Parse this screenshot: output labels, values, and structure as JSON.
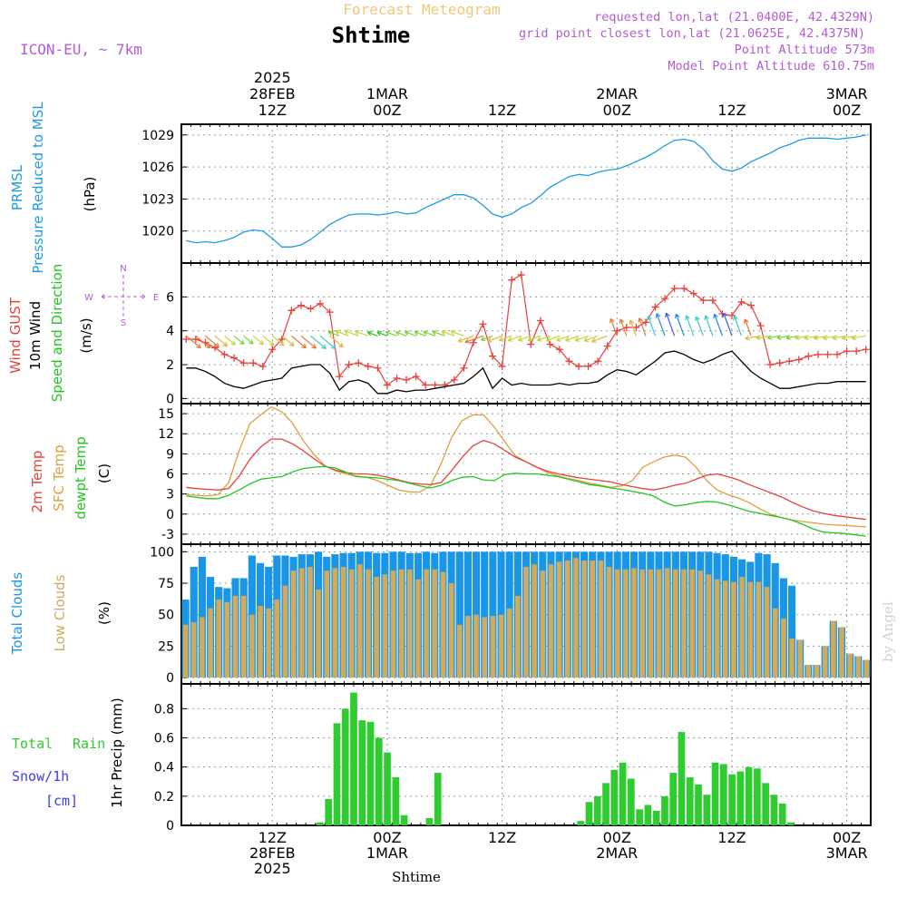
{
  "header": {
    "title": "Shtime",
    "subtitle": "Forecast Meteogram",
    "model": "ICON-EU, ~ 7km",
    "requested": "requested lon,lat (21.0400E, 42.4329N)",
    "gridpoint": "grid point closest lon,lat (21.0625E, 42.4375N)",
    "altitude": "Point Altitude 573m",
    "model_altitude": "Model Point Altitude 610.75m",
    "watermark": "by Angel",
    "footer": "Shtime"
  },
  "time_axis": {
    "top_labels": [
      {
        "i": 9,
        "lines": [
          "2025",
          "28FEB",
          "12Z"
        ]
      },
      {
        "i": 21,
        "lines": [
          "1MAR",
          "00Z"
        ]
      },
      {
        "i": 33,
        "lines": [
          "12Z"
        ]
      },
      {
        "i": 45,
        "lines": [
          "2MAR",
          "00Z"
        ]
      },
      {
        "i": 57,
        "lines": [
          "12Z"
        ]
      },
      {
        "i": 69,
        "lines": [
          "3MAR",
          "00Z"
        ]
      }
    ],
    "bottom_labels": [
      {
        "i": 9,
        "lines": [
          "12Z",
          "28FEB",
          "2025"
        ]
      },
      {
        "i": 21,
        "lines": [
          "00Z",
          "1MAR"
        ]
      },
      {
        "i": 33,
        "lines": [
          "12Z"
        ]
      },
      {
        "i": 45,
        "lines": [
          "00Z",
          "2MAR"
        ]
      },
      {
        "i": 57,
        "lines": [
          "12Z"
        ]
      },
      {
        "i": 69,
        "lines": [
          "00Z",
          "3MAR"
        ]
      }
    ]
  },
  "colors": {
    "pressure": "#1e9be6",
    "gust": "#e8403c",
    "wind": "#000000",
    "temp": "#e8403c",
    "sfc": "#dca03c",
    "dewpt": "#22c722",
    "total_cloud": "#1a96e6",
    "low_cloud": "#d2aa5a",
    "rain": "#2ecc2e",
    "snow": "#3c3cf0",
    "header_purple": "#b45ad2",
    "header_orange": "#f0c87a"
  },
  "chart_data": [
    {
      "type": "line",
      "title": "PRMSL Pressure Reduced to MSL",
      "ylabel": "(hPa)",
      "ylim": [
        1017,
        1030
      ],
      "yticks": [
        1020,
        1023,
        1026,
        1029
      ],
      "series": [
        {
          "name": "PRMSL",
          "values": [
            1019.1,
            1018.9,
            1019.0,
            1018.9,
            1019.1,
            1019.4,
            1019.9,
            1020.1,
            1020.0,
            1019.3,
            1018.5,
            1018.5,
            1018.7,
            1019.2,
            1019.9,
            1020.6,
            1021.1,
            1021.5,
            1021.6,
            1021.6,
            1021.5,
            1021.6,
            1021.8,
            1021.6,
            1021.7,
            1022.2,
            1022.6,
            1023.0,
            1023.4,
            1023.4,
            1023.1,
            1022.4,
            1021.6,
            1021.3,
            1021.6,
            1022.2,
            1022.6,
            1023.3,
            1024.1,
            1024.6,
            1025.1,
            1025.3,
            1025.2,
            1025.5,
            1025.7,
            1025.8,
            1026.1,
            1026.5,
            1026.9,
            1027.4,
            1028.0,
            1028.5,
            1028.6,
            1028.4,
            1027.7,
            1026.6,
            1025.8,
            1025.6,
            1025.9,
            1026.5,
            1026.9,
            1027.3,
            1027.8,
            1028.1,
            1028.5,
            1028.7,
            1028.7,
            1028.7,
            1028.6,
            1028.7,
            1028.8,
            1029.0
          ]
        }
      ]
    },
    {
      "type": "line",
      "title": "Wind GUST / 10m Wind / Speed and Direction",
      "ylabel": "(m/s)",
      "ylim": [
        -0.3,
        8
      ],
      "yticks": [
        0,
        2,
        4,
        6
      ],
      "compass": {
        "n": "N",
        "s": "S",
        "w": "W",
        "e": "E"
      },
      "series": [
        {
          "name": "Wind GUST",
          "values": [
            3.5,
            3.5,
            3.3,
            3.0,
            2.6,
            2.4,
            2.1,
            2.1,
            1.9,
            2.9,
            3.5,
            5.2,
            5.5,
            5.3,
            5.6,
            5.1,
            1.3,
            2.0,
            2.1,
            1.9,
            1.8,
            0.8,
            1.2,
            1.1,
            1.3,
            0.8,
            0.8,
            0.8,
            1.1,
            1.8,
            3.3,
            4.4,
            2.5,
            1.9,
            7.0,
            7.3,
            3.2,
            4.6,
            3.2,
            2.9,
            2.2,
            1.9,
            1.9,
            2.2,
            3.1,
            4.0,
            4.2,
            4.2,
            4.5,
            5.4,
            5.9,
            6.5,
            6.5,
            6.2,
            5.8,
            5.8,
            5.0,
            4.9,
            5.7,
            5.5,
            4.3,
            2.0,
            2.1,
            2.2,
            2.3,
            2.5,
            2.6,
            2.6,
            2.6,
            2.8,
            2.8,
            2.9
          ]
        },
        {
          "name": "10m Wind",
          "values": [
            1.8,
            1.8,
            1.6,
            1.3,
            0.9,
            0.7,
            0.6,
            0.8,
            1.0,
            1.1,
            1.2,
            1.8,
            1.9,
            2.0,
            2.0,
            1.5,
            0.5,
            1.0,
            1.1,
            0.9,
            0.3,
            0.3,
            0.5,
            0.4,
            0.5,
            0.5,
            0.6,
            0.7,
            0.8,
            0.9,
            1.3,
            1.8,
            0.6,
            1.2,
            0.8,
            0.9,
            0.8,
            0.8,
            0.8,
            0.9,
            0.8,
            0.9,
            0.9,
            1.0,
            1.4,
            1.7,
            1.6,
            1.4,
            1.8,
            2.2,
            2.7,
            2.8,
            2.6,
            2.3,
            2.1,
            2.3,
            2.6,
            2.8,
            2.2,
            1.6,
            1.2,
            0.9,
            0.6,
            0.6,
            0.7,
            0.8,
            0.9,
            0.9,
            1.0,
            1.0,
            1.0,
            1.0
          ]
        }
      ]
    },
    {
      "type": "line",
      "title": "2m Temp / SFC Temp / dewpt Temp",
      "ylabel": "(C)",
      "ylim": [
        -4.5,
        16.5
      ],
      "yticks": [
        -3,
        0,
        3,
        6,
        9,
        12,
        15
      ],
      "series": [
        {
          "name": "2m Temp",
          "values": [
            4.0,
            3.8,
            3.7,
            3.6,
            3.8,
            5.7,
            8.2,
            10.0,
            11.2,
            11.2,
            10.5,
            9.5,
            8.3,
            7.2,
            6.6,
            6.2,
            6.0,
            6.0,
            5.8,
            5.5,
            5.1,
            4.7,
            4.5,
            4.4,
            4.7,
            6.5,
            8.5,
            10.2,
            11.0,
            10.5,
            9.5,
            8.5,
            7.8,
            7.0,
            6.4,
            6.0,
            5.7,
            5.4,
            5.2,
            5.0,
            4.8,
            4.4,
            4.1,
            3.8,
            3.6,
            3.9,
            4.3,
            4.6,
            5.2,
            5.8,
            6.0,
            5.6,
            5.1,
            4.4,
            3.8,
            3.2,
            2.6,
            1.8,
            1.1,
            0.5,
            0.1,
            -0.2,
            -0.4,
            -0.6,
            -0.8
          ]
        },
        {
          "name": "SFC Temp",
          "values": [
            2.9,
            2.8,
            2.7,
            2.9,
            4.7,
            9.5,
            13.5,
            14.8,
            16.0,
            15.3,
            13.6,
            11.0,
            9.0,
            7.3,
            6.5,
            6.0,
            5.7,
            5.5,
            5.0,
            4.3,
            3.6,
            3.3,
            3.3,
            4.2,
            7.5,
            11.5,
            14.0,
            14.8,
            14.8,
            13.0,
            10.8,
            8.7,
            7.8,
            7.0,
            6.2,
            5.7,
            5.3,
            5.0,
            4.6,
            4.3,
            4.0,
            4.2,
            5.0,
            7.0,
            7.8,
            8.5,
            8.8,
            8.5,
            7.0,
            5.0,
            3.6,
            2.9,
            2.4,
            1.7,
            0.8,
            0.0,
            -0.5,
            -0.9,
            -1.1,
            -1.3,
            -1.5,
            -1.6,
            -1.7,
            -1.8,
            -1.9
          ]
        },
        {
          "name": "dewpt Temp",
          "values": [
            2.7,
            2.5,
            2.3,
            2.3,
            2.8,
            3.6,
            4.5,
            5.2,
            5.4,
            5.6,
            6.3,
            6.8,
            7.0,
            7.1,
            6.9,
            6.3,
            5.6,
            5.5,
            5.4,
            5.2,
            5.0,
            4.6,
            4.2,
            3.9,
            4.3,
            5.0,
            5.5,
            5.6,
            5.1,
            5.0,
            5.9,
            6.1,
            6.0,
            6.0,
            5.8,
            5.6,
            5.2,
            4.8,
            4.4,
            4.2,
            3.9,
            3.7,
            3.4,
            3.1,
            2.7,
            1.8,
            1.2,
            1.4,
            1.7,
            1.9,
            1.8,
            1.4,
            0.9,
            0.4,
            0.1,
            -0.2,
            -0.5,
            -0.9,
            -1.5,
            -2.2,
            -2.7,
            -2.8,
            -2.9,
            -3.1,
            -3.3
          ]
        }
      ]
    },
    {
      "type": "bar",
      "title": "Total Clouds / Low Clouds",
      "ylabel": "(%)",
      "ylim": [
        -5,
        106
      ],
      "yticks": [
        0,
        25,
        50,
        75,
        100
      ],
      "series": [
        {
          "name": "Total Clouds",
          "values": [
            62,
            88,
            96,
            80,
            72,
            71,
            79,
            79,
            97,
            91,
            88,
            97,
            97,
            96,
            98,
            98,
            100,
            96,
            98,
            99,
            99,
            100,
            100,
            99,
            99,
            100,
            100,
            99,
            99,
            100,
            99,
            100,
            100,
            100,
            100,
            100,
            100,
            100,
            100,
            100,
            100,
            100,
            100,
            100,
            100,
            100,
            100,
            100,
            100,
            100,
            100,
            100,
            100,
            100,
            100,
            100,
            100,
            100,
            100,
            100,
            100,
            100,
            100,
            100,
            99,
            98,
            96,
            94,
            92,
            99,
            98,
            91,
            79,
            73,
            30,
            10,
            10,
            25,
            45,
            40,
            19,
            17,
            14
          ]
        },
        {
          "name": "Low Clouds",
          "values": [
            42,
            44,
            48,
            55,
            62,
            60,
            65,
            65,
            50,
            57,
            55,
            62,
            73,
            85,
            87,
            88,
            70,
            85,
            87,
            88,
            86,
            90,
            86,
            80,
            82,
            85,
            86,
            86,
            78,
            86,
            86,
            84,
            75,
            42,
            49,
            50,
            48,
            49,
            50,
            55,
            65,
            88,
            90,
            85,
            90,
            92,
            93,
            95,
            93,
            93,
            93,
            88,
            86,
            86,
            87,
            86,
            86,
            86,
            87,
            86,
            86,
            86,
            85,
            82,
            78,
            77,
            76,
            80,
            76,
            76,
            72,
            55,
            47,
            31,
            30,
            10,
            10,
            25,
            45,
            40,
            19,
            17,
            14
          ]
        }
      ]
    },
    {
      "type": "bar",
      "title": "Total Rain / Snow/1h [cm]",
      "ylabel": "1hr Precip (mm)",
      "ylim": [
        0,
        0.97
      ],
      "yticks": [
        0,
        0.2,
        0.4,
        0.6,
        0.8
      ],
      "legend": [
        "Total",
        "Rain",
        "Snow/1h",
        "[cm]"
      ],
      "series": [
        {
          "name": "Total Rain",
          "values": [
            0,
            0,
            0,
            0,
            0,
            0,
            0,
            0,
            0,
            0,
            0,
            0,
            0,
            0,
            0,
            0,
            0.02,
            0.18,
            0.7,
            0.8,
            0.91,
            0.72,
            0.71,
            0.6,
            0.5,
            0.33,
            0.07,
            0,
            0,
            0.05,
            0.36,
            0,
            0,
            0,
            0,
            0,
            0,
            0,
            0,
            0,
            0,
            0,
            0,
            0,
            0,
            0,
            0,
            0.03,
            0.16,
            0.2,
            0.29,
            0.38,
            0.43,
            0.32,
            0.11,
            0.14,
            0.1,
            0.2,
            0.36,
            0.64,
            0.33,
            0.28,
            0.21,
            0.43,
            0.42,
            0.35,
            0.37,
            0.4,
            0.39,
            0.29,
            0.21,
            0.15,
            0.02,
            0,
            0,
            0,
            0,
            0,
            0,
            0,
            0,
            0
          ]
        },
        {
          "name": "Snow/1h",
          "values": []
        }
      ]
    }
  ]
}
